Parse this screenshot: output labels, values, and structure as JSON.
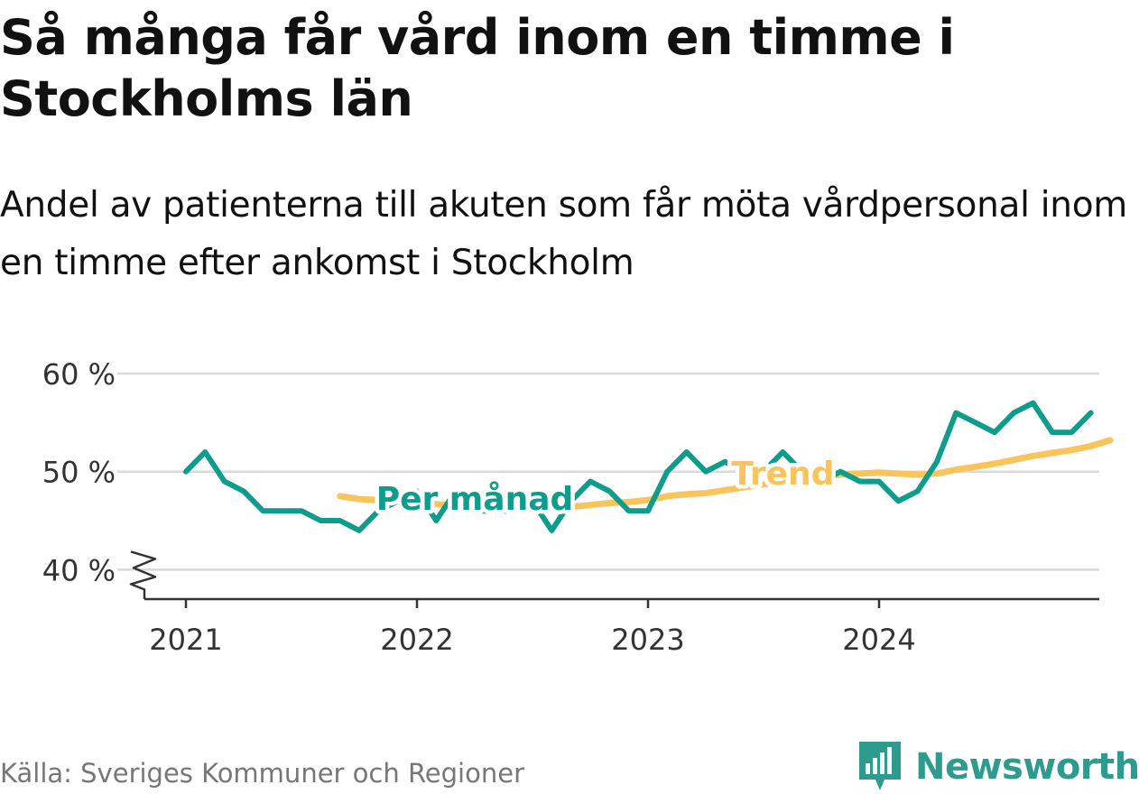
{
  "header": {
    "title": "Så många får vård inom en timme i Stockholms län",
    "subtitle": "Andel av patienterna till akuten som får möta vårdpersonal inom en timme efter ankomst i Stockholm"
  },
  "footer": {
    "source": "Källa: Sveriges Kommuner och Regioner",
    "brand": "Newsworthy"
  },
  "colors": {
    "monthly": "#0e9c8c",
    "trend": "#f9c45b",
    "grid": "#d9d9d9",
    "axis": "#333333",
    "brand": "#2e9b8f"
  },
  "chart_data": {
    "type": "line",
    "ylabel": "",
    "xlabel": "",
    "ylim": [
      37,
      60
    ],
    "y_ticks": [
      {
        "value": 40,
        "label": "40 %"
      },
      {
        "value": 50,
        "label": "50 %"
      },
      {
        "value": 60,
        "label": "60 %"
      }
    ],
    "x_ticks": [
      "2021",
      "2022",
      "2023",
      "2024"
    ],
    "axis_break": true,
    "grid": true,
    "series": [
      {
        "name": "Per månad",
        "color": "#0e9c8c",
        "points": [
          [
            "2021-01",
            50
          ],
          [
            "2021-02",
            52
          ],
          [
            "2021-03",
            49
          ],
          [
            "2021-04",
            48
          ],
          [
            "2021-05",
            46
          ],
          [
            "2021-06",
            46
          ],
          [
            "2021-07",
            46
          ],
          [
            "2021-08",
            45
          ],
          [
            "2021-09",
            45
          ],
          [
            "2021-10",
            44
          ],
          [
            "2021-11",
            46
          ],
          [
            "2021-12",
            47
          ],
          [
            "2022-01",
            48
          ],
          [
            "2022-02",
            45
          ],
          [
            "2022-03",
            48
          ],
          [
            "2022-04",
            46
          ],
          [
            "2022-05",
            46
          ],
          [
            "2022-06",
            46
          ],
          [
            "2022-07",
            47
          ],
          [
            "2022-08",
            44
          ],
          [
            "2022-09",
            47
          ],
          [
            "2022-10",
            49
          ],
          [
            "2022-11",
            48
          ],
          [
            "2022-12",
            46
          ],
          [
            "2023-01",
            46
          ],
          [
            "2023-02",
            50
          ],
          [
            "2023-03",
            52
          ],
          [
            "2023-04",
            50
          ],
          [
            "2023-05",
            51
          ],
          [
            "2023-06",
            50
          ],
          [
            "2023-07",
            50
          ],
          [
            "2023-08",
            52
          ],
          [
            "2023-09",
            50
          ],
          [
            "2023-10",
            49
          ],
          [
            "2023-11",
            50
          ],
          [
            "2023-12",
            49
          ],
          [
            "2024-01",
            49
          ],
          [
            "2024-02",
            47
          ],
          [
            "2024-03",
            48
          ],
          [
            "2024-04",
            51
          ],
          [
            "2024-05",
            56
          ],
          [
            "2024-06",
            55
          ],
          [
            "2024-07",
            54
          ],
          [
            "2024-08",
            56
          ],
          [
            "2024-09",
            57
          ],
          [
            "2024-10",
            54
          ],
          [
            "2024-11",
            54
          ],
          [
            "2024-12",
            56
          ]
        ]
      },
      {
        "name": "Trend",
        "color": "#f9c45b",
        "points": [
          [
            "2021-09",
            47.5
          ],
          [
            "2021-10",
            47.2
          ],
          [
            "2021-11",
            47.1
          ],
          [
            "2021-12",
            47.0
          ],
          [
            "2022-01",
            46.9
          ],
          [
            "2022-02",
            46.7
          ],
          [
            "2022-03",
            46.5
          ],
          [
            "2022-04",
            46.4
          ],
          [
            "2022-05",
            46.3
          ],
          [
            "2022-06",
            46.2
          ],
          [
            "2022-07",
            46.2
          ],
          [
            "2022-08",
            46.3
          ],
          [
            "2022-09",
            46.4
          ],
          [
            "2022-10",
            46.6
          ],
          [
            "2022-11",
            46.8
          ],
          [
            "2022-12",
            46.9
          ],
          [
            "2023-01",
            47.1
          ],
          [
            "2023-02",
            47.5
          ],
          [
            "2023-03",
            47.7
          ],
          [
            "2023-04",
            47.8
          ],
          [
            "2023-05",
            48.1
          ],
          [
            "2023-06",
            48.4
          ],
          [
            "2023-07",
            48.7
          ],
          [
            "2023-08",
            49.0
          ],
          [
            "2023-09",
            49.2
          ],
          [
            "2023-10",
            49.4
          ],
          [
            "2023-11",
            49.7
          ],
          [
            "2023-12",
            49.8
          ],
          [
            "2024-01",
            49.9
          ],
          [
            "2024-02",
            49.8
          ],
          [
            "2024-03",
            49.7
          ],
          [
            "2024-04",
            49.8
          ],
          [
            "2024-05",
            50.2
          ],
          [
            "2024-06",
            50.5
          ],
          [
            "2024-07",
            50.8
          ],
          [
            "2024-08",
            51.2
          ],
          [
            "2024-09",
            51.6
          ],
          [
            "2024-10",
            51.9
          ],
          [
            "2024-11",
            52.2
          ],
          [
            "2024-12",
            52.6
          ],
          [
            "2025-01",
            53.2
          ]
        ]
      }
    ],
    "annotations": [
      {
        "series": "Per månad",
        "text": "Per månad",
        "at": "2022-04",
        "value": 47.2
      },
      {
        "series": "Trend",
        "text": "Trend",
        "at": "2023-08",
        "value": 49.8
      }
    ]
  }
}
